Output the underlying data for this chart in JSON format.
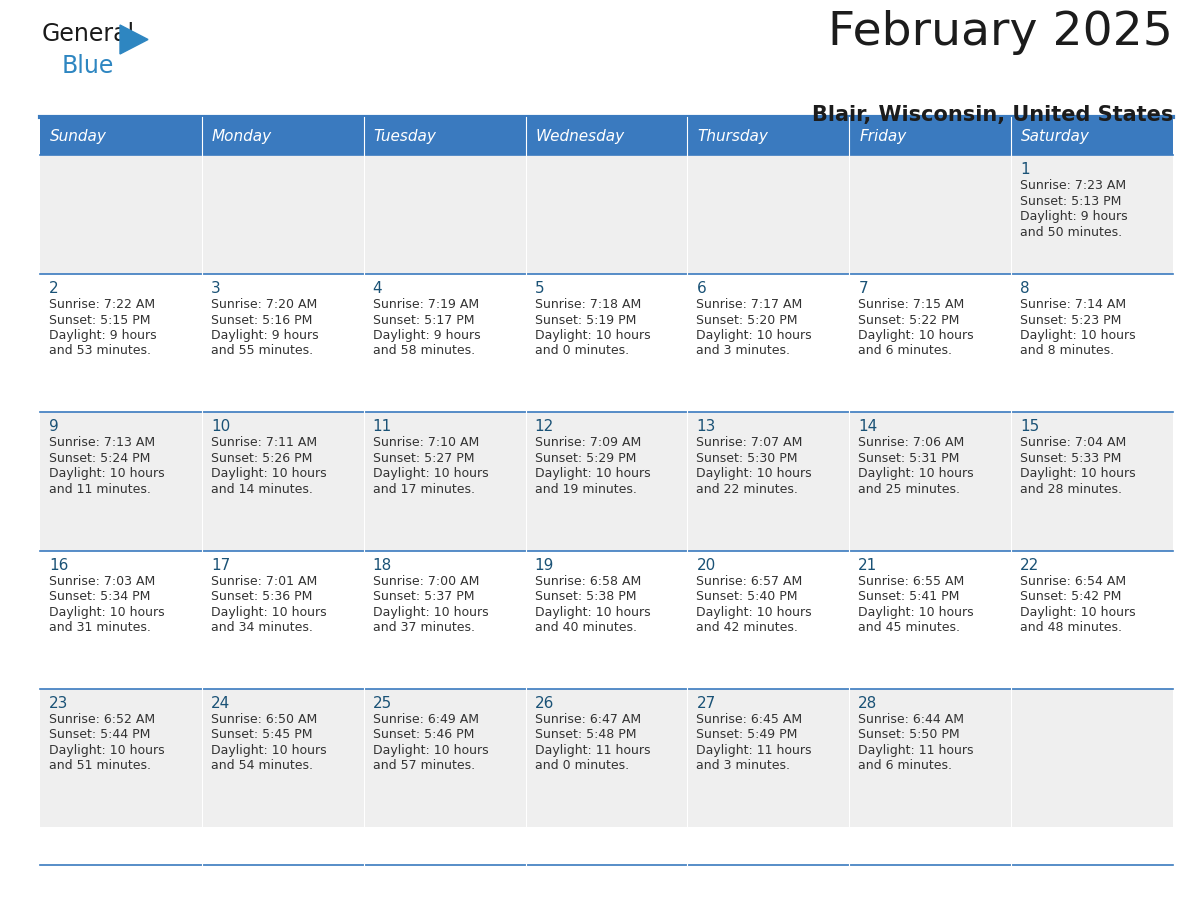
{
  "title": "February 2025",
  "subtitle": "Blair, Wisconsin, United States",
  "days_of_week": [
    "Sunday",
    "Monday",
    "Tuesday",
    "Wednesday",
    "Thursday",
    "Friday",
    "Saturday"
  ],
  "header_bg": "#3a7abf",
  "header_text": "#ffffff",
  "cell_bg_odd": "#efefef",
  "cell_bg_even": "#ffffff",
  "day_num_color": "#1a5276",
  "info_text_color": "#333333",
  "border_color": "#3a7abf",
  "calendar_data": [
    [
      null,
      null,
      null,
      null,
      null,
      null,
      {
        "day": 1,
        "sunrise": "7:23 AM",
        "sunset": "5:13 PM",
        "dl1": "Daylight: 9 hours",
        "dl2": "and 50 minutes."
      }
    ],
    [
      {
        "day": 2,
        "sunrise": "7:22 AM",
        "sunset": "5:15 PM",
        "dl1": "Daylight: 9 hours",
        "dl2": "and 53 minutes."
      },
      {
        "day": 3,
        "sunrise": "7:20 AM",
        "sunset": "5:16 PM",
        "dl1": "Daylight: 9 hours",
        "dl2": "and 55 minutes."
      },
      {
        "day": 4,
        "sunrise": "7:19 AM",
        "sunset": "5:17 PM",
        "dl1": "Daylight: 9 hours",
        "dl2": "and 58 minutes."
      },
      {
        "day": 5,
        "sunrise": "7:18 AM",
        "sunset": "5:19 PM",
        "dl1": "Daylight: 10 hours",
        "dl2": "and 0 minutes."
      },
      {
        "day": 6,
        "sunrise": "7:17 AM",
        "sunset": "5:20 PM",
        "dl1": "Daylight: 10 hours",
        "dl2": "and 3 minutes."
      },
      {
        "day": 7,
        "sunrise": "7:15 AM",
        "sunset": "5:22 PM",
        "dl1": "Daylight: 10 hours",
        "dl2": "and 6 minutes."
      },
      {
        "day": 8,
        "sunrise": "7:14 AM",
        "sunset": "5:23 PM",
        "dl1": "Daylight: 10 hours",
        "dl2": "and 8 minutes."
      }
    ],
    [
      {
        "day": 9,
        "sunrise": "7:13 AM",
        "sunset": "5:24 PM",
        "dl1": "Daylight: 10 hours",
        "dl2": "and 11 minutes."
      },
      {
        "day": 10,
        "sunrise": "7:11 AM",
        "sunset": "5:26 PM",
        "dl1": "Daylight: 10 hours",
        "dl2": "and 14 minutes."
      },
      {
        "day": 11,
        "sunrise": "7:10 AM",
        "sunset": "5:27 PM",
        "dl1": "Daylight: 10 hours",
        "dl2": "and 17 minutes."
      },
      {
        "day": 12,
        "sunrise": "7:09 AM",
        "sunset": "5:29 PM",
        "dl1": "Daylight: 10 hours",
        "dl2": "and 19 minutes."
      },
      {
        "day": 13,
        "sunrise": "7:07 AM",
        "sunset": "5:30 PM",
        "dl1": "Daylight: 10 hours",
        "dl2": "and 22 minutes."
      },
      {
        "day": 14,
        "sunrise": "7:06 AM",
        "sunset": "5:31 PM",
        "dl1": "Daylight: 10 hours",
        "dl2": "and 25 minutes."
      },
      {
        "day": 15,
        "sunrise": "7:04 AM",
        "sunset": "5:33 PM",
        "dl1": "Daylight: 10 hours",
        "dl2": "and 28 minutes."
      }
    ],
    [
      {
        "day": 16,
        "sunrise": "7:03 AM",
        "sunset": "5:34 PM",
        "dl1": "Daylight: 10 hours",
        "dl2": "and 31 minutes."
      },
      {
        "day": 17,
        "sunrise": "7:01 AM",
        "sunset": "5:36 PM",
        "dl1": "Daylight: 10 hours",
        "dl2": "and 34 minutes."
      },
      {
        "day": 18,
        "sunrise": "7:00 AM",
        "sunset": "5:37 PM",
        "dl1": "Daylight: 10 hours",
        "dl2": "and 37 minutes."
      },
      {
        "day": 19,
        "sunrise": "6:58 AM",
        "sunset": "5:38 PM",
        "dl1": "Daylight: 10 hours",
        "dl2": "and 40 minutes."
      },
      {
        "day": 20,
        "sunrise": "6:57 AM",
        "sunset": "5:40 PM",
        "dl1": "Daylight: 10 hours",
        "dl2": "and 42 minutes."
      },
      {
        "day": 21,
        "sunrise": "6:55 AM",
        "sunset": "5:41 PM",
        "dl1": "Daylight: 10 hours",
        "dl2": "and 45 minutes."
      },
      {
        "day": 22,
        "sunrise": "6:54 AM",
        "sunset": "5:42 PM",
        "dl1": "Daylight: 10 hours",
        "dl2": "and 48 minutes."
      }
    ],
    [
      {
        "day": 23,
        "sunrise": "6:52 AM",
        "sunset": "5:44 PM",
        "dl1": "Daylight: 10 hours",
        "dl2": "and 51 minutes."
      },
      {
        "day": 24,
        "sunrise": "6:50 AM",
        "sunset": "5:45 PM",
        "dl1": "Daylight: 10 hours",
        "dl2": "and 54 minutes."
      },
      {
        "day": 25,
        "sunrise": "6:49 AM",
        "sunset": "5:46 PM",
        "dl1": "Daylight: 10 hours",
        "dl2": "and 57 minutes."
      },
      {
        "day": 26,
        "sunrise": "6:47 AM",
        "sunset": "5:48 PM",
        "dl1": "Daylight: 11 hours",
        "dl2": "and 0 minutes."
      },
      {
        "day": 27,
        "sunrise": "6:45 AM",
        "sunset": "5:49 PM",
        "dl1": "Daylight: 11 hours",
        "dl2": "and 3 minutes."
      },
      {
        "day": 28,
        "sunrise": "6:44 AM",
        "sunset": "5:50 PM",
        "dl1": "Daylight: 11 hours",
        "dl2": "and 6 minutes."
      },
      null
    ]
  ]
}
